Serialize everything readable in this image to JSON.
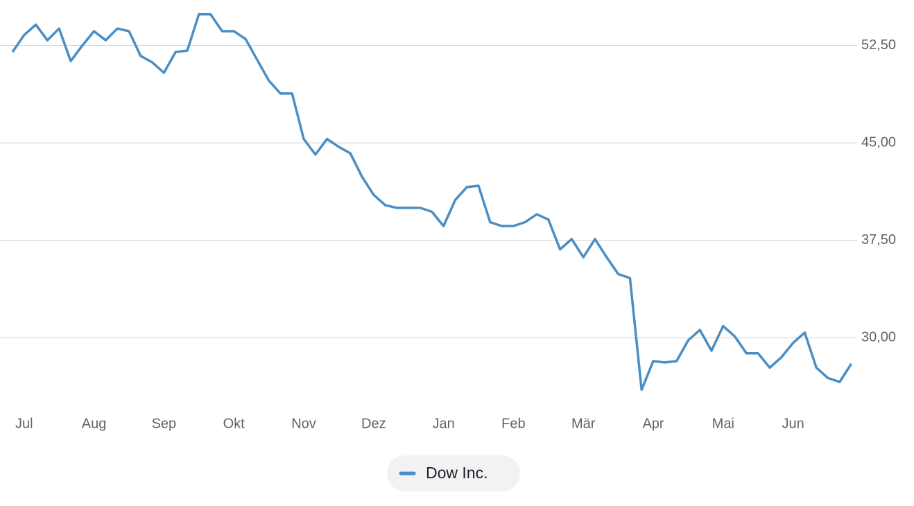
{
  "chart_data": {
    "type": "line",
    "categories": [
      null,
      "Jul",
      null,
      null,
      null,
      null,
      null,
      "Aug",
      null,
      null,
      null,
      null,
      null,
      "Sep",
      null,
      null,
      null,
      null,
      null,
      "Okt",
      null,
      null,
      null,
      null,
      null,
      "Nov",
      null,
      null,
      null,
      null,
      null,
      "Dez",
      null,
      null,
      null,
      null,
      null,
      "Jan",
      null,
      null,
      null,
      null,
      null,
      "Feb",
      null,
      null,
      null,
      null,
      null,
      "Mär",
      null,
      null,
      null,
      null,
      null,
      "Apr",
      null,
      null,
      null,
      null,
      null,
      "Mai",
      null,
      null,
      null,
      null,
      null,
      "Jun",
      null,
      null,
      null,
      null,
      null
    ],
    "series": [
      {
        "name": "Dow Inc.",
        "color": "#4a8ec4",
        "values": [
          52.0,
          53.3,
          54.1,
          52.9,
          53.8,
          51.3,
          52.5,
          53.6,
          52.9,
          53.8,
          53.6,
          51.7,
          51.2,
          50.4,
          52.0,
          52.1,
          54.9,
          54.9,
          53.6,
          53.6,
          53.0,
          51.4,
          49.8,
          48.8,
          48.8,
          45.3,
          44.1,
          45.3,
          44.7,
          44.2,
          42.4,
          41.0,
          40.2,
          40.0,
          40.0,
          40.0,
          39.7,
          38.6,
          40.6,
          41.6,
          41.7,
          38.9,
          38.6,
          38.6,
          38.9,
          39.5,
          39.1,
          36.8,
          37.6,
          36.2,
          37.6,
          36.2,
          34.9,
          34.6,
          26.0,
          28.2,
          28.1,
          28.2,
          29.8,
          30.6,
          29.0,
          30.9,
          30.1,
          28.8,
          28.8,
          27.7,
          28.5,
          29.6,
          30.4,
          27.7,
          26.9,
          26.6,
          28.0
        ]
      }
    ],
    "ylim": [
      25,
      56
    ],
    "yticks": [
      {
        "value": 30,
        "label": "30,00"
      },
      {
        "value": 37.5,
        "label": "37,50"
      },
      {
        "value": 45,
        "label": "45,00"
      },
      {
        "value": 52.5,
        "label": "52,50"
      }
    ],
    "grid": true
  }
}
